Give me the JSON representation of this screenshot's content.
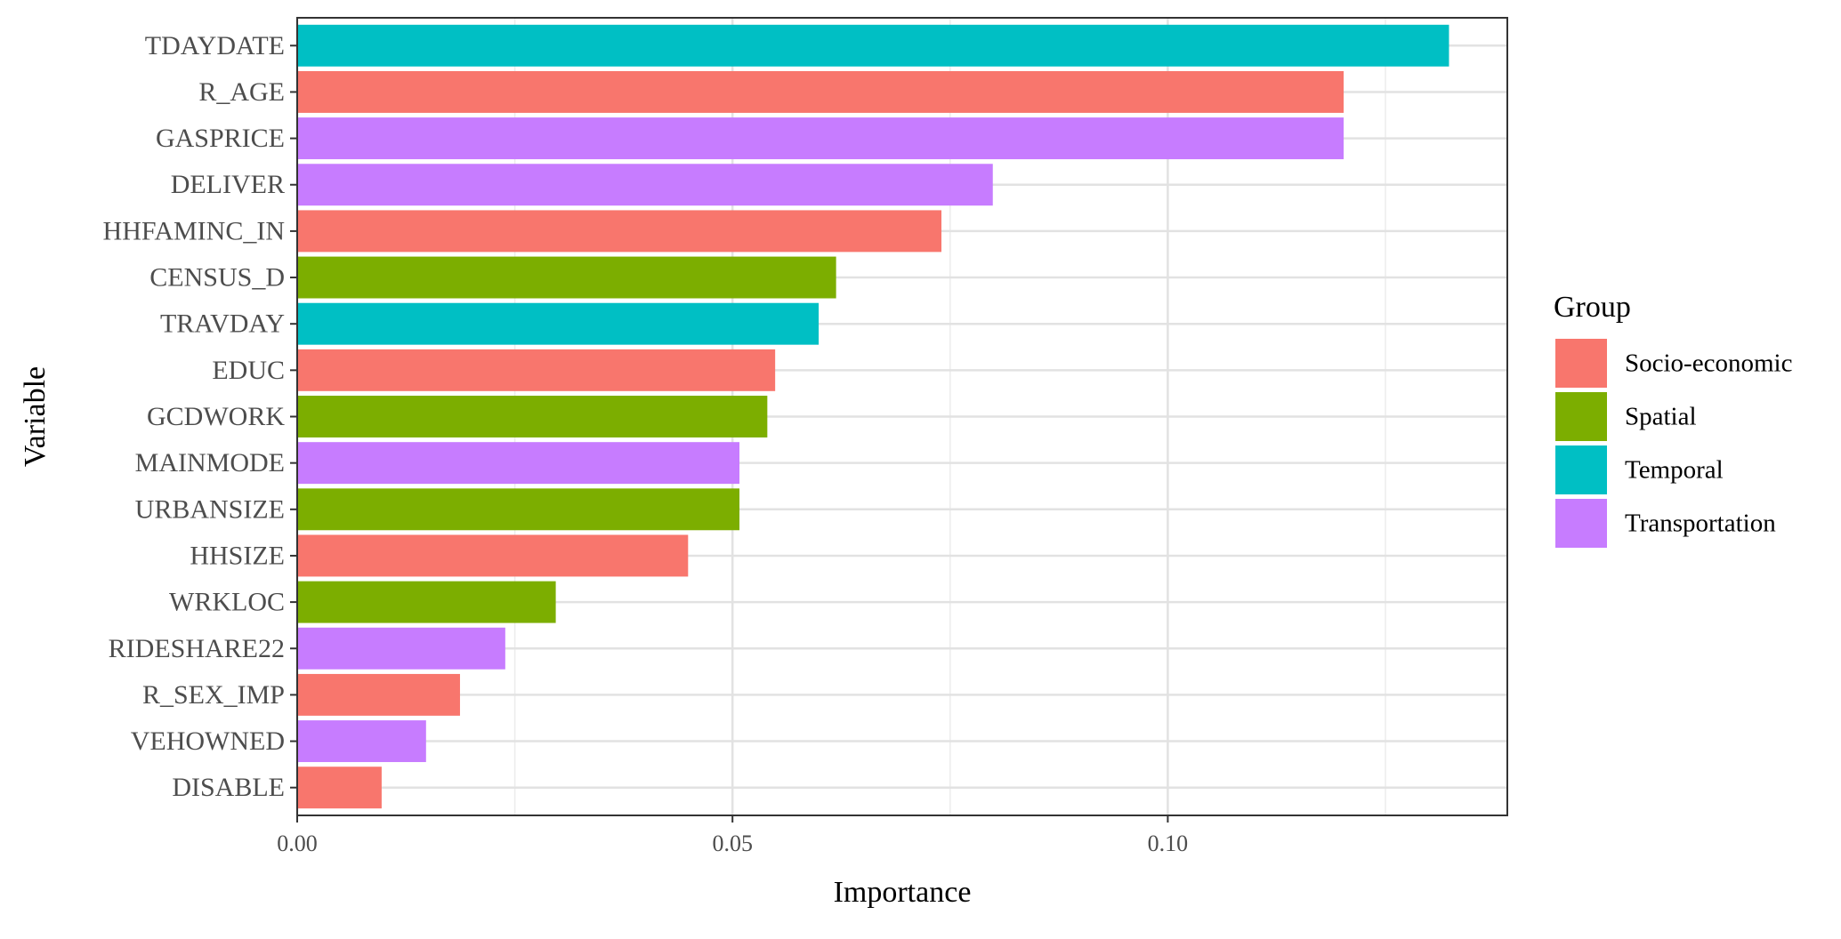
{
  "chart_data": {
    "type": "bar",
    "orientation": "horizontal",
    "xlabel": "Importance",
    "ylabel": "Variable",
    "xlim": [
      0,
      0.139
    ],
    "xticks": [
      0.0,
      0.05,
      0.1
    ],
    "xtick_labels": [
      "0.00",
      "0.05",
      "0.10"
    ],
    "grid": true,
    "legend": {
      "title": "Group",
      "position": "right",
      "entries": [
        {
          "name": "Socio-economic",
          "color": "#F8766D"
        },
        {
          "name": "Spatial",
          "color": "#7CAE00"
        },
        {
          "name": "Temporal",
          "color": "#00BFC4"
        },
        {
          "name": "Transportation",
          "color": "#C77CFF"
        }
      ]
    },
    "categories": [
      "TDAYDATE",
      "R_AGE",
      "GASPRICE",
      "DELIVER",
      "HHFAMINC_IN",
      "CENSUS_D",
      "TRAVDAY",
      "EDUC",
      "GCDWORK",
      "MAINMODE",
      "URBANSIZE",
      "HHSIZE",
      "WRKLOC",
      "RIDESHARE22",
      "R_SEX_IMP",
      "VEHOWNED",
      "DISABLE"
    ],
    "values": [
      0.1323,
      0.1202,
      0.1202,
      0.0799,
      0.074,
      0.0619,
      0.0599,
      0.0549,
      0.054,
      0.0508,
      0.0508,
      0.0449,
      0.0297,
      0.0239,
      0.0187,
      0.0148,
      0.0097
    ],
    "groups": [
      "Temporal",
      "Socio-economic",
      "Transportation",
      "Transportation",
      "Socio-economic",
      "Spatial",
      "Temporal",
      "Socio-economic",
      "Spatial",
      "Transportation",
      "Spatial",
      "Socio-economic",
      "Spatial",
      "Transportation",
      "Socio-economic",
      "Transportation",
      "Socio-economic"
    ]
  }
}
